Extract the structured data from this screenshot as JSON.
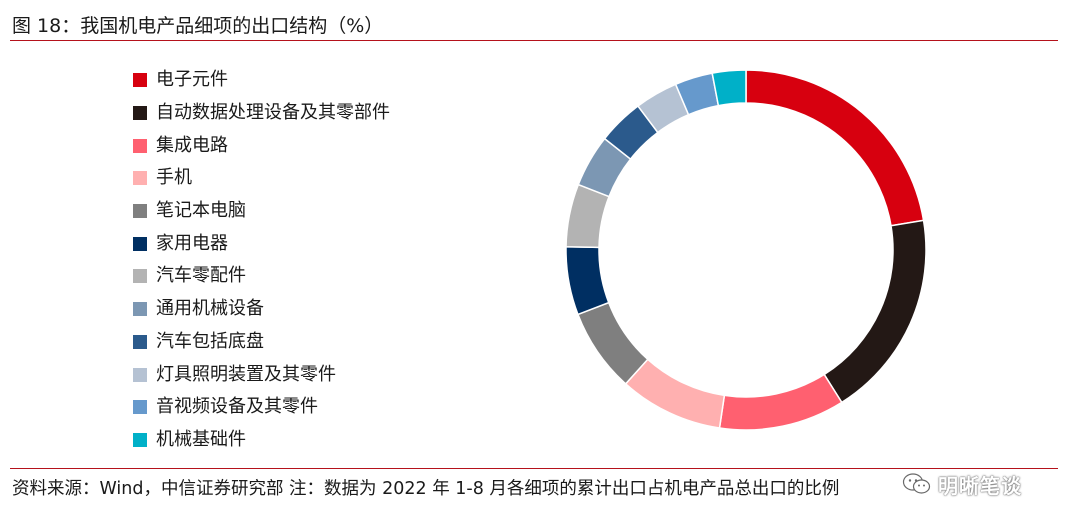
{
  "header": {
    "title": "图 18：我国机电产品细项的出口结构（%）"
  },
  "footer": {
    "note": "资料来源：Wind，中信证券研究部 注：数据为 2022 年 1-8 月各细项的累计出口占机电产品总出口的比例"
  },
  "watermark": {
    "text": "明晰笔谈",
    "icon": "wechat-icon"
  },
  "chart_data": {
    "type": "pie",
    "variant": "donut",
    "title": "图 18：我国机电产品细项的出口结构（%）",
    "legend_position": "left",
    "categories": [
      "电子元件",
      "自动数据处理设备及其零部件",
      "集成电路",
      "手机",
      "笔记本电脑",
      "家用电器",
      "汽车零配件",
      "通用机械设备",
      "汽车包括底盘",
      "灯具照明装置及其零件",
      "音视频设备及其零件",
      "机械基础件"
    ],
    "values": [
      23.8,
      19.9,
      12.0,
      9.9,
      8.0,
      6.5,
      6.0,
      5.0,
      4.4,
      4.1,
      3.6,
      3.2
    ],
    "colors": [
      "#d7000f",
      "#231815",
      "#ff6070",
      "#ffb0b0",
      "#7f7f7f",
      "#002f62",
      "#b3b3b3",
      "#7c97b3",
      "#2b5a8c",
      "#b5c2d3",
      "#6699cc",
      "#00b0c8"
    ]
  }
}
